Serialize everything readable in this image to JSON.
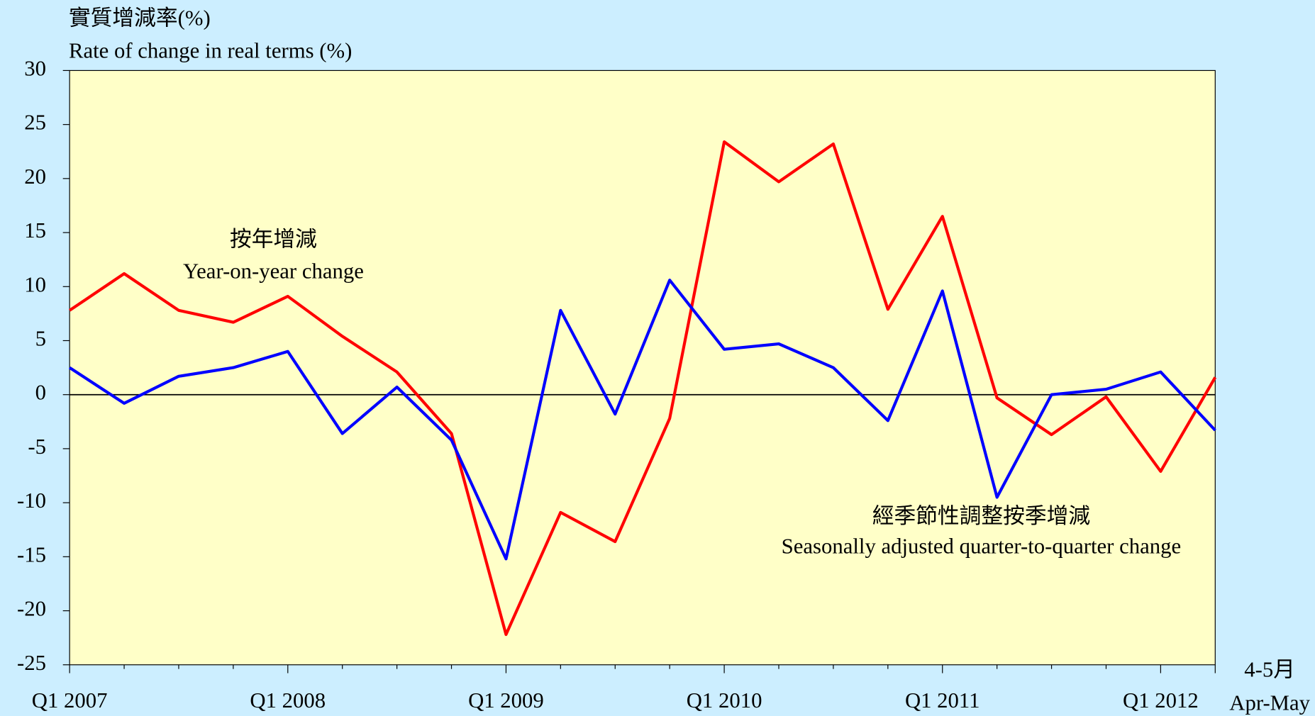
{
  "chart_data": {
    "type": "line",
    "y_label_zh": "實質增減率(%)",
    "y_label": "Rate of change in real terms (%)",
    "categories": [
      "Q1 2007",
      null,
      null,
      null,
      "Q1 2008",
      null,
      null,
      null,
      "Q1 2009",
      null,
      null,
      null,
      "Q1 2010",
      null,
      null,
      null,
      "Q1 2011",
      null,
      null,
      null,
      "Q1 2012",
      [
        "4-5月",
        "Apr-May"
      ]
    ],
    "series": [
      {
        "name_zh": "按年增減",
        "name": "Year-on-year change",
        "color": "#ff0000",
        "values": [
          7.8,
          11.2,
          7.8,
          6.7,
          9.1,
          5.4,
          2.1,
          -3.6,
          -22.2,
          -10.9,
          -13.6,
          -2.2,
          23.4,
          19.7,
          23.2,
          7.9,
          16.5,
          -0.3,
          -3.7,
          -0.2,
          -7.1,
          1.6
        ]
      },
      {
        "name_zh": "經季節性調整按季增減",
        "name": "Seasonally adjusted quarter-to-quarter change",
        "color": "#0000ff",
        "values": [
          2.5,
          -0.8,
          1.7,
          2.5,
          4.0,
          -3.6,
          0.7,
          -4.2,
          -15.2,
          7.8,
          -1.8,
          10.6,
          4.2,
          4.7,
          2.5,
          -2.4,
          9.6,
          -9.5,
          0.0,
          0.5,
          2.1,
          -3.3
        ]
      }
    ],
    "ylim": [
      -25,
      30
    ],
    "yticks": [
      -25,
      -20,
      -15,
      -10,
      -5,
      0,
      5,
      10,
      15,
      20,
      25,
      30
    ],
    "plot_color": "#ffffc8",
    "zero_line": true
  }
}
